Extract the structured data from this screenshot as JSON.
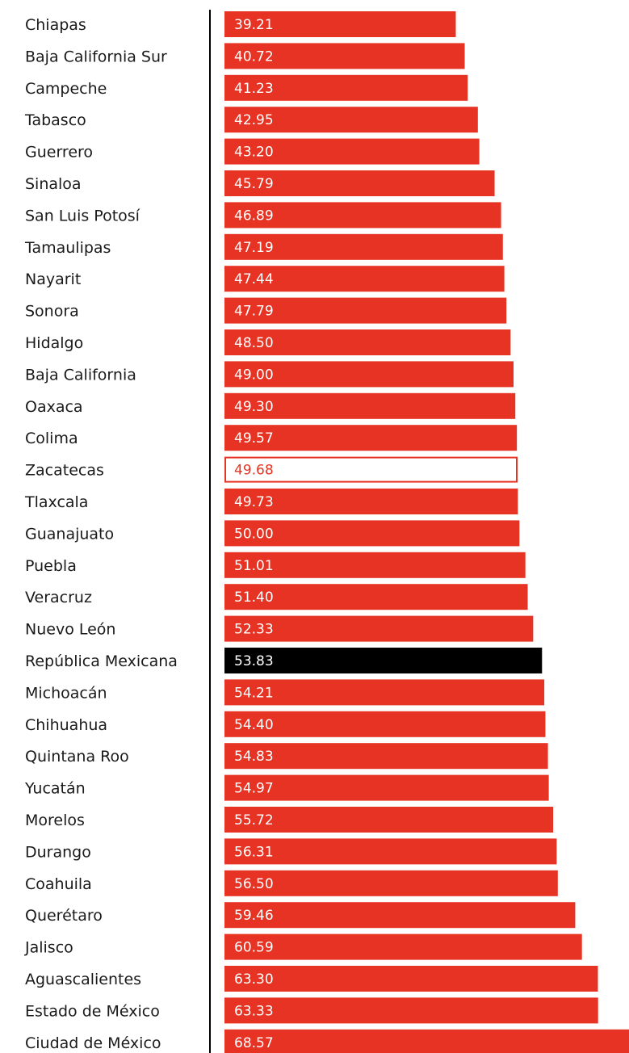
{
  "chart_data": {
    "type": "bar",
    "orientation": "horizontal",
    "title": "",
    "xlabel": "",
    "ylabel": "",
    "xlim": [
      0,
      68.57
    ],
    "grid": false,
    "legend": "none",
    "colors": {
      "default": "#e63323",
      "highlight_national": "#000000",
      "highlight_outline": "#e63323",
      "value_text_on_bar": "#ffffff",
      "value_text_outline": "#e63323",
      "axis_line": "#000000"
    },
    "categories": [
      "Chiapas",
      "Baja California Sur",
      "Campeche",
      "Tabasco",
      "Guerrero",
      "Sinaloa",
      "San Luis Potosí",
      "Tamaulipas",
      "Nayarit",
      "Sonora",
      "Hidalgo",
      "Baja California",
      "Oaxaca",
      "Colima",
      "Zacatecas",
      "Tlaxcala",
      "Guanajuato",
      "Puebla",
      "Veracruz",
      "Nuevo León",
      "República Mexicana",
      "Michoacán",
      "Chihuahua",
      "Quintana Roo",
      "Yucatán",
      "Morelos",
      "Durango",
      "Coahuila",
      "Querétaro",
      "Jalisco",
      "Aguascalientes",
      "Estado de México",
      "Ciudad de México"
    ],
    "values": [
      39.21,
      40.72,
      41.23,
      42.95,
      43.2,
      45.79,
      46.89,
      47.19,
      47.44,
      47.79,
      48.5,
      49.0,
      49.3,
      49.57,
      49.68,
      49.73,
      50.0,
      51.01,
      51.4,
      52.33,
      53.83,
      54.21,
      54.4,
      54.83,
      54.97,
      55.72,
      56.31,
      56.5,
      59.46,
      60.59,
      63.3,
      63.33,
      68.57
    ],
    "value_labels": [
      "39.21",
      "40.72",
      "41.23",
      "42.95",
      "43.20",
      "45.79",
      "46.89",
      "47.19",
      "47.44",
      "47.79",
      "48.50",
      "49.00",
      "49.30",
      "49.57",
      "49.68",
      "49.73",
      "50.00",
      "51.01",
      "51.40",
      "52.33",
      "53.83",
      "54.21",
      "54.40",
      "54.83",
      "54.97",
      "55.72",
      "56.31",
      "56.50",
      "59.46",
      "60.59",
      "63.30",
      "63.33",
      "68.57"
    ],
    "highlights": {
      "national_average": "República Mexicana",
      "outlined": "Zacatecas"
    }
  }
}
